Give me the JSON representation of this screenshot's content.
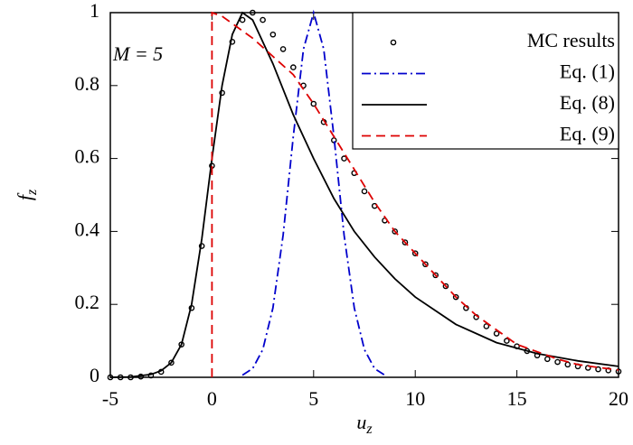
{
  "chart_data": {
    "type": "line",
    "xlabel": {
      "text": "u",
      "subscript": "z"
    },
    "ylabel": {
      "text": "f",
      "subscript": "z"
    },
    "annotation": "M = 5",
    "xlim": [
      -5,
      20
    ],
    "xticks": [
      -5,
      0,
      5,
      10,
      15,
      20
    ],
    "ylim": [
      0,
      1
    ],
    "yticks": [
      0,
      0.2,
      0.4,
      0.6,
      0.8,
      1
    ],
    "legend": "upper right",
    "series": [
      {
        "name": "MC results",
        "style": "markers",
        "color": "#000000",
        "x": [
          -5,
          -4.5,
          -4,
          -3.5,
          -3,
          -2.5,
          -2,
          -1.5,
          -1,
          -0.5,
          0,
          0.5,
          1,
          1.5,
          2,
          2.5,
          3,
          3.5,
          4,
          4.5,
          5,
          5.5,
          6,
          6.5,
          7,
          7.5,
          8,
          8.5,
          9,
          9.5,
          10,
          10.5,
          11,
          11.5,
          12,
          12.5,
          13,
          13.5,
          14,
          14.5,
          15,
          15.5,
          16,
          16.5,
          17,
          17.5,
          18,
          18.5,
          19,
          19.5,
          20
        ],
        "values": [
          0,
          0,
          0,
          0.002,
          0.005,
          0.015,
          0.04,
          0.09,
          0.19,
          0.36,
          0.58,
          0.78,
          0.92,
          0.98,
          1.0,
          0.98,
          0.94,
          0.9,
          0.85,
          0.8,
          0.75,
          0.7,
          0.65,
          0.6,
          0.56,
          0.51,
          0.47,
          0.43,
          0.4,
          0.37,
          0.34,
          0.31,
          0.28,
          0.25,
          0.22,
          0.19,
          0.165,
          0.14,
          0.12,
          0.1,
          0.085,
          0.072,
          0.06,
          0.05,
          0.042,
          0.035,
          0.03,
          0.026,
          0.022,
          0.019,
          0.016
        ]
      },
      {
        "name": "Eq. (1)",
        "style": "dashdot",
        "color": "#0000cc",
        "x": [
          1.5,
          2,
          2.5,
          3,
          3.5,
          4,
          4.5,
          5,
          5.5,
          6,
          6.5,
          7,
          7.5,
          8,
          8.5
        ],
        "values": [
          0.006,
          0.024,
          0.076,
          0.19,
          0.39,
          0.66,
          0.9,
          1,
          0.9,
          0.66,
          0.39,
          0.19,
          0.076,
          0.024,
          0.006
        ]
      },
      {
        "name": "Eq. (8)",
        "style": "solid",
        "color": "#000000",
        "x": [
          -5,
          -4,
          -3,
          -2.5,
          -2,
          -1.5,
          -1,
          -0.5,
          0,
          0.5,
          1,
          1.5,
          2,
          3,
          4,
          5,
          6,
          7,
          8,
          9,
          10,
          12,
          14,
          16,
          18,
          20
        ],
        "values": [
          0,
          0.001,
          0.008,
          0.018,
          0.04,
          0.09,
          0.2,
          0.38,
          0.6,
          0.8,
          0.94,
          1.0,
          0.98,
          0.86,
          0.72,
          0.6,
          0.49,
          0.4,
          0.33,
          0.27,
          0.22,
          0.145,
          0.095,
          0.065,
          0.045,
          0.03
        ]
      },
      {
        "name": "Eq. (9)",
        "style": "dashed",
        "color": "#dd0000",
        "x": [
          0,
          0,
          0.5,
          1,
          1.5,
          2,
          3,
          4,
          5,
          6,
          7,
          8,
          9,
          10,
          11,
          12,
          13,
          14,
          15,
          16,
          17,
          18,
          19,
          20
        ],
        "values": [
          0,
          1,
          0.99,
          0.97,
          0.95,
          0.93,
          0.88,
          0.83,
          0.75,
          0.66,
          0.57,
          0.48,
          0.4,
          0.34,
          0.28,
          0.22,
          0.17,
          0.13,
          0.09,
          0.07,
          0.05,
          0.035,
          0.027,
          0.02
        ]
      }
    ]
  }
}
